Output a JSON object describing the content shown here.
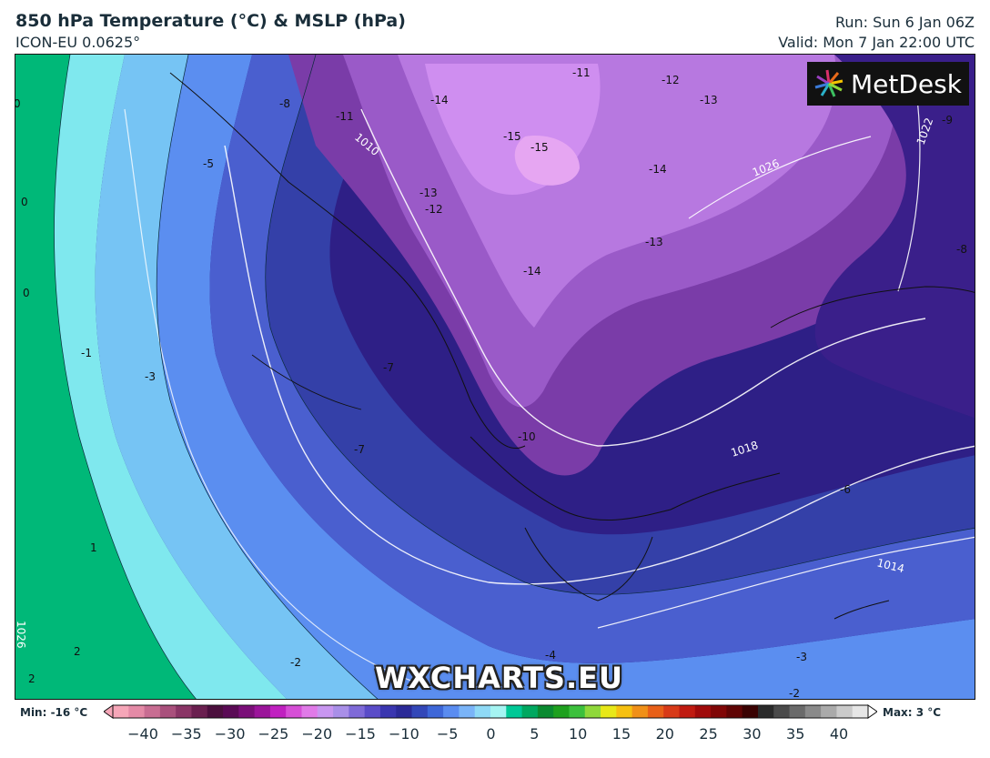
{
  "header": {
    "title": "850 hPa Temperature (°C) & MSLP (hPa)",
    "model": "ICON-EU 0.0625°",
    "run": "Run: Sun 6 Jan 06Z",
    "valid": "Valid: Mon 7 Jan 22:00 UTC"
  },
  "logo": {
    "text": "MetDesk"
  },
  "watermark": {
    "text": "WXCHARTS.EU"
  },
  "colorbar": {
    "min_label": "Min: -16 °C",
    "max_label": "Max: 3 °C",
    "ticks": [
      "−40",
      "−35",
      "−30",
      "−25",
      "−20",
      "−15",
      "−10",
      "−5",
      "0",
      "5",
      "10",
      "15",
      "20",
      "25",
      "30",
      "35",
      "40"
    ],
    "colors": [
      "#f6a6b8",
      "#e48aa6",
      "#c86d92",
      "#a9507c",
      "#8a3566",
      "#6a1f4f",
      "#4b0f3d",
      "#5a0a55",
      "#7a0e78",
      "#9b149a",
      "#c020c0",
      "#d64ed6",
      "#e07ae8",
      "#c896f0",
      "#a98fe8",
      "#7f6ad8",
      "#5a4cc8",
      "#3a36b0",
      "#2b2a98",
      "#3347b8",
      "#3e67d8",
      "#5a8cf0",
      "#7ab4f8",
      "#8fdaf6",
      "#a5f4f2",
      "#00c896",
      "#00a860",
      "#0a8a30",
      "#1ea01e",
      "#3cc03c",
      "#8fd83a",
      "#e8e818",
      "#f6c010",
      "#f09018",
      "#e86018",
      "#d83a18",
      "#c01a10",
      "#a00a0a",
      "#800606",
      "#600404",
      "#3a0202",
      "#2a2a2a",
      "#4a4a4a",
      "#6a6a6a",
      "#8a8a8a",
      "#aaaaaa",
      "#cacaca",
      "#e6e6e6"
    ]
  },
  "map_labels": {
    "temperature": [
      "-11",
      "-12",
      "-13",
      "-14",
      "-15",
      "-15",
      "-14",
      "-13",
      "-12",
      "-14",
      "-13",
      "-8",
      "-5",
      "0",
      "0",
      "0",
      "-1",
      "-3",
      "-7",
      "-7",
      "-10",
      "-6",
      "-3",
      "-2",
      "-4",
      "-2",
      "1",
      "2",
      "2",
      "-9",
      "-8",
      "-11",
      "-8"
    ],
    "pressure": [
      "1010",
      "1026",
      "1022",
      "1018",
      "1014",
      "1026"
    ]
  }
}
